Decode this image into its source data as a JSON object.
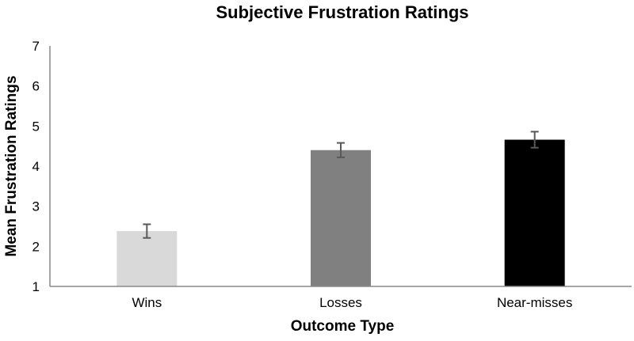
{
  "chart_data": {
    "type": "bar",
    "title": "Subjective Frustration Ratings",
    "xlabel": "Outcome Type",
    "ylabel": "Mean Frustration  Ratings",
    "categories": [
      "Wins",
      "Losses",
      "Near-misses"
    ],
    "values": [
      2.38,
      4.4,
      4.66
    ],
    "error": [
      0.17,
      0.18,
      0.2
    ],
    "ylim": [
      1,
      7
    ],
    "yticks": [
      "1",
      "2",
      "3",
      "4",
      "5",
      "6",
      "7"
    ],
    "colors": [
      "#d9d9d9",
      "#808080",
      "#000000"
    ],
    "error_color": "#595959",
    "axis_color": "#888888",
    "grid": false,
    "legend": "none"
  }
}
